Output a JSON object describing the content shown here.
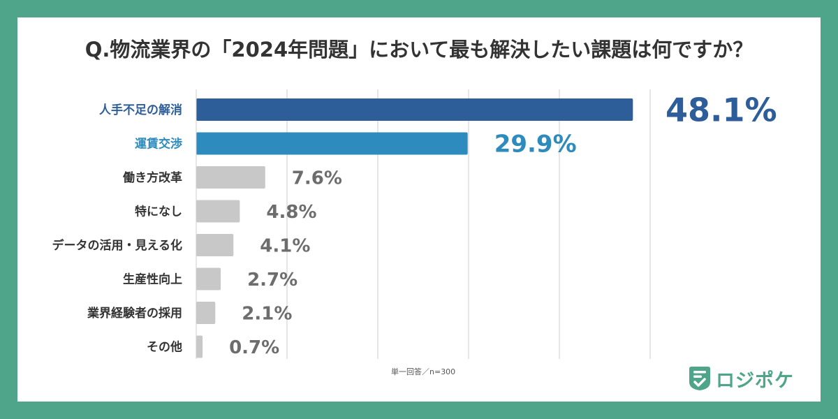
{
  "title": "Q.物流業界の「2024年問題」において最も解決したい課題は何ですか？",
  "footnote": "単一回答／n=300",
  "brand": {
    "name": "ロジポケ",
    "icon": "document-check-icon",
    "color": "#4fa58a"
  },
  "colors": {
    "frame": "#4fa58a",
    "highlight_primary": "#2e5e99",
    "highlight_secondary": "#2e8bbd",
    "other_bar": "#c8c8c8",
    "other_label": "#333333",
    "other_value": "#6d6d6d",
    "grid": "#cccccc"
  },
  "chart_data": {
    "type": "bar",
    "orientation": "horizontal",
    "categories": [
      "人手不足の解消",
      "運賃交渉",
      "働き方改革",
      "特になし",
      "データの活用・見える化",
      "生産性向上",
      "業界経験者の採用",
      "その他"
    ],
    "values": [
      48.1,
      29.9,
      7.6,
      4.8,
      4.1,
      2.7,
      2.1,
      0.7
    ],
    "value_labels": [
      "48.1%",
      "29.9%",
      "7.6%",
      "4.8%",
      "4.1%",
      "2.7%",
      "2.1%",
      "0.7%"
    ],
    "unit": "%",
    "xlim": [
      0,
      50
    ],
    "grid": true,
    "highlight": [
      0,
      1
    ]
  }
}
